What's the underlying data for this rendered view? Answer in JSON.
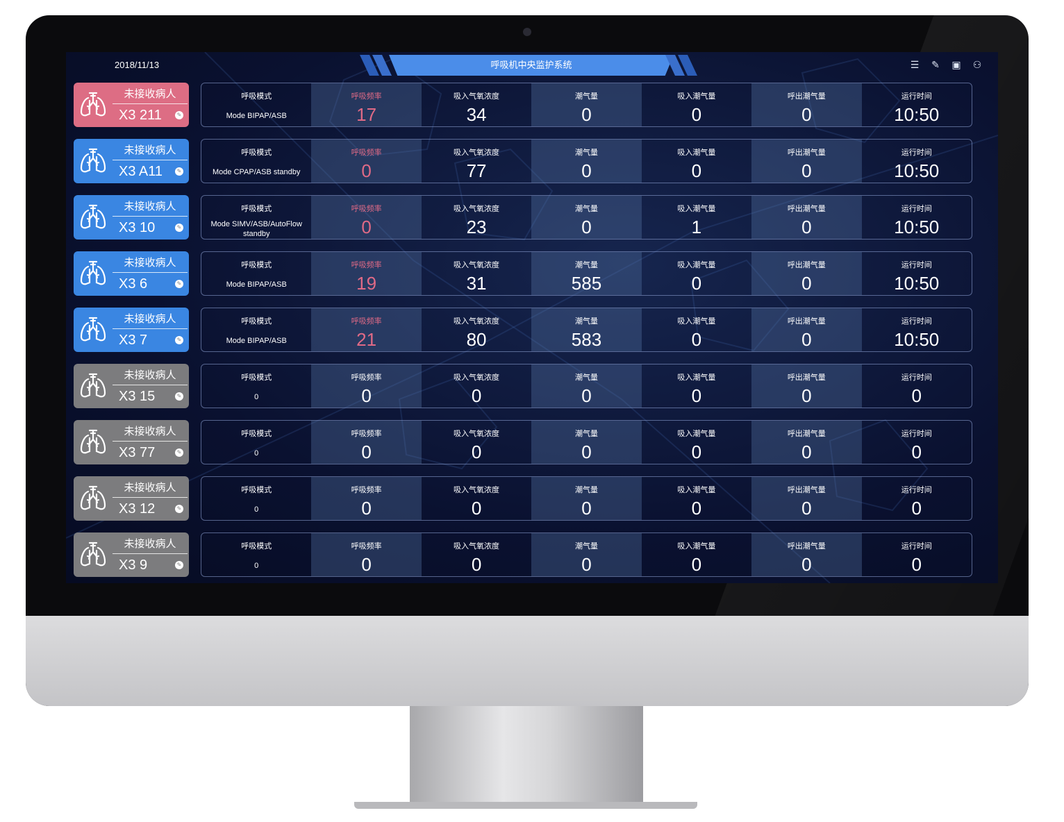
{
  "header": {
    "date": "2018/11/13",
    "title": "呼吸机中央监护系统",
    "icons": [
      "list-icon",
      "edit-icon",
      "layout-icon",
      "user-icon"
    ]
  },
  "columns": [
    "呼吸模式",
    "呼吸频率",
    "吸入气氧浓度",
    "潮气量",
    "吸入潮气量",
    "呼出潮气量",
    "运行时间"
  ],
  "colors": {
    "red": "#dd6d84",
    "blue": "#3a86e2",
    "gray": "#7c7c7e",
    "highlight": "#e06a86",
    "title": "#4b8de9"
  },
  "rows": [
    {
      "status": "未接收病人",
      "bed": "X3 211",
      "color": "red",
      "alert": true,
      "values": [
        "Mode BIPAP/ASB",
        "17",
        "34",
        "0",
        "0",
        "0",
        "10:50"
      ]
    },
    {
      "status": "未接收病人",
      "bed": "X3 A11",
      "color": "blue",
      "alert": true,
      "values": [
        "Mode CPAP/ASB standby",
        "0",
        "77",
        "0",
        "0",
        "0",
        "10:50"
      ]
    },
    {
      "status": "未接收病人",
      "bed": "X3 10",
      "color": "blue",
      "alert": true,
      "values": [
        "Mode SIMV/ASB/AutoFlow standby",
        "0",
        "23",
        "0",
        "1",
        "0",
        "10:50"
      ]
    },
    {
      "status": "未接收病人",
      "bed": "X3 6",
      "color": "blue",
      "alert": true,
      "values": [
        "Mode BIPAP/ASB",
        "19",
        "31",
        "585",
        "0",
        "0",
        "10:50"
      ]
    },
    {
      "status": "未接收病人",
      "bed": "X3 7",
      "color": "blue",
      "alert": true,
      "values": [
        "Mode BIPAP/ASB",
        "21",
        "80",
        "583",
        "0",
        "0",
        "10:50"
      ]
    },
    {
      "status": "未接收病人",
      "bed": "X3 15",
      "color": "gray",
      "alert": false,
      "values": [
        "0",
        "0",
        "0",
        "0",
        "0",
        "0",
        "0"
      ]
    },
    {
      "status": "未接收病人",
      "bed": "X3 77",
      "color": "gray",
      "alert": false,
      "values": [
        "0",
        "0",
        "0",
        "0",
        "0",
        "0",
        "0"
      ]
    },
    {
      "status": "未接收病人",
      "bed": "X3 12",
      "color": "gray",
      "alert": false,
      "values": [
        "0",
        "0",
        "0",
        "0",
        "0",
        "0",
        "0"
      ]
    },
    {
      "status": "未接收病人",
      "bed": "X3 9",
      "color": "gray",
      "alert": false,
      "values": [
        "0",
        "0",
        "0",
        "0",
        "0",
        "0",
        "0"
      ]
    }
  ]
}
